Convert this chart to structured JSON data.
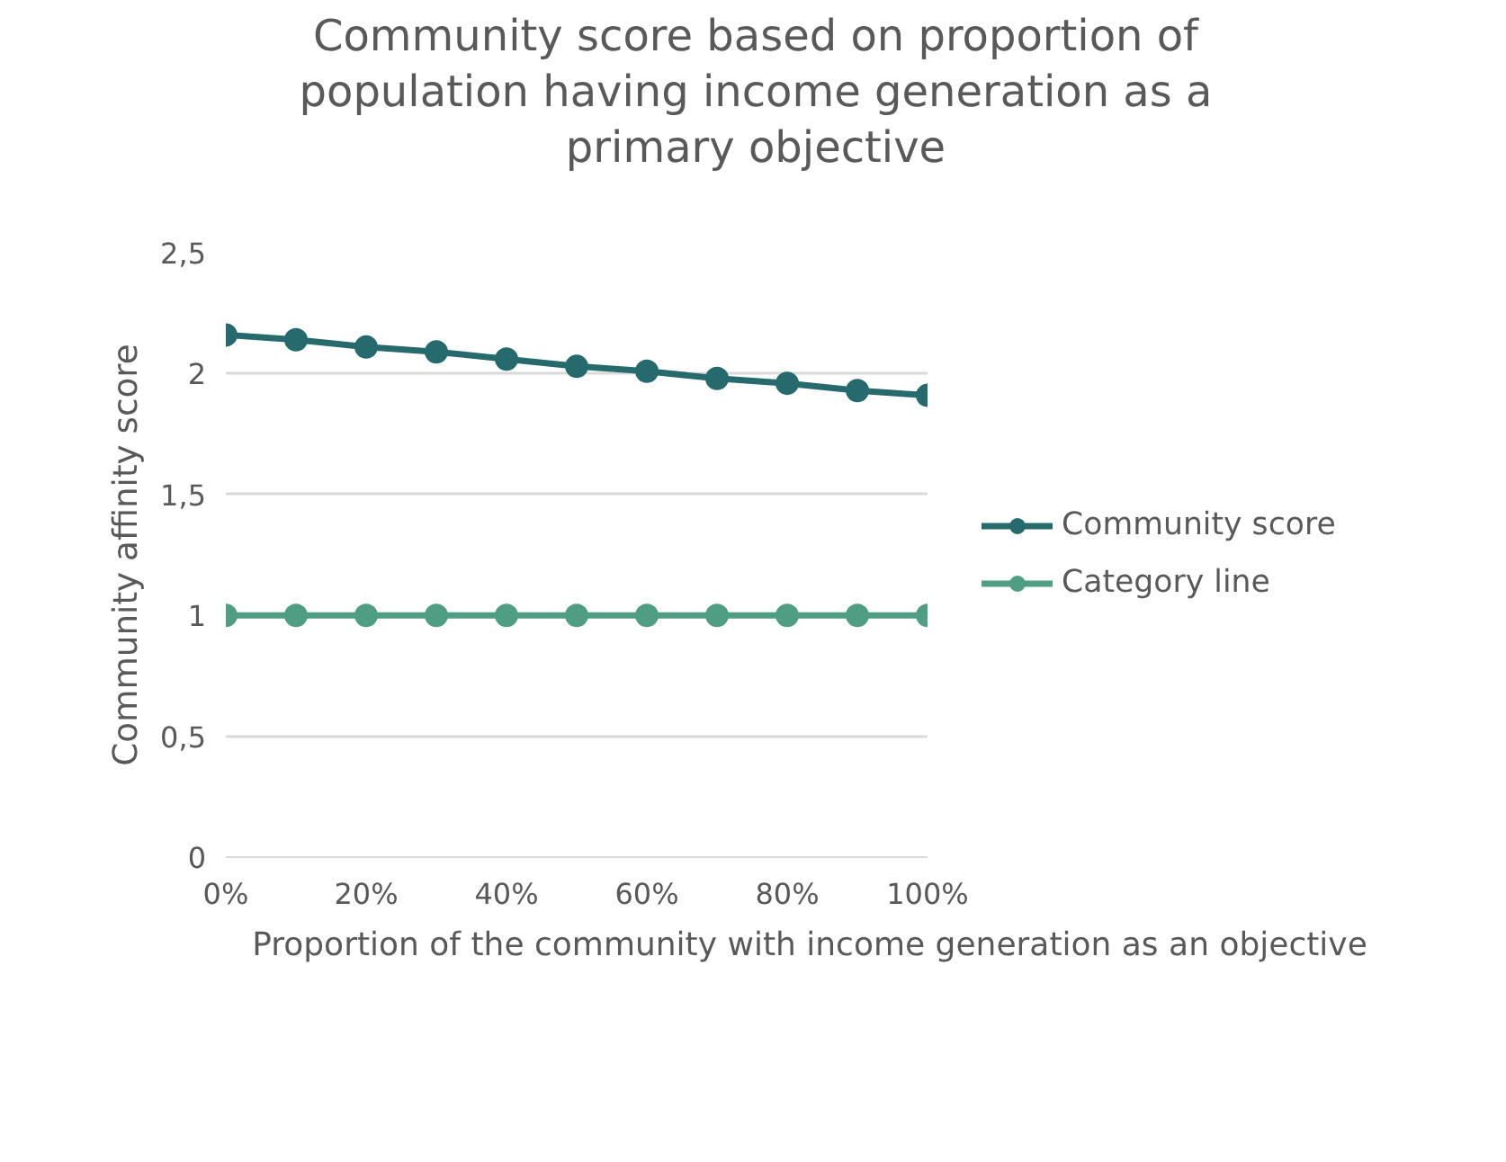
{
  "chart_data": {
    "type": "line",
    "title": "Community score based on proportion of population having income generation as a primary objective",
    "xlabel": "Proportion of the community with income generation as an objective",
    "ylabel": "Community affinity score",
    "x": [
      0,
      10,
      20,
      30,
      40,
      50,
      60,
      70,
      80,
      90,
      100
    ],
    "series": [
      {
        "name": "Community score",
        "color": "#276a6e",
        "values": [
          2.16,
          2.14,
          2.11,
          2.09,
          2.06,
          2.03,
          2.01,
          1.98,
          1.96,
          1.93,
          1.91
        ]
      },
      {
        "name": "Category line",
        "color": "#4f9e83",
        "values": [
          1,
          1,
          1,
          1,
          1,
          1,
          1,
          1,
          1,
          1,
          1
        ]
      }
    ],
    "xlim": [
      0,
      100
    ],
    "xticks": [
      {
        "value": 0,
        "label": "0%"
      },
      {
        "value": 20,
        "label": "20%"
      },
      {
        "value": 40,
        "label": "40%"
      },
      {
        "value": 60,
        "label": "60%"
      },
      {
        "value": 80,
        "label": "80%"
      },
      {
        "value": 100,
        "label": "100%"
      }
    ],
    "ylim": [
      0,
      2.5
    ],
    "yticks": [
      {
        "value": 0,
        "label": "0"
      },
      {
        "value": 0.5,
        "label": "0,5"
      },
      {
        "value": 1,
        "label": "1"
      },
      {
        "value": 1.5,
        "label": "1,5"
      },
      {
        "value": 2,
        "label": "2"
      },
      {
        "value": 2.5,
        "label": "2,5"
      }
    ],
    "grid": "y",
    "legend": "right",
    "marker": "circle",
    "line_style": "solid"
  }
}
